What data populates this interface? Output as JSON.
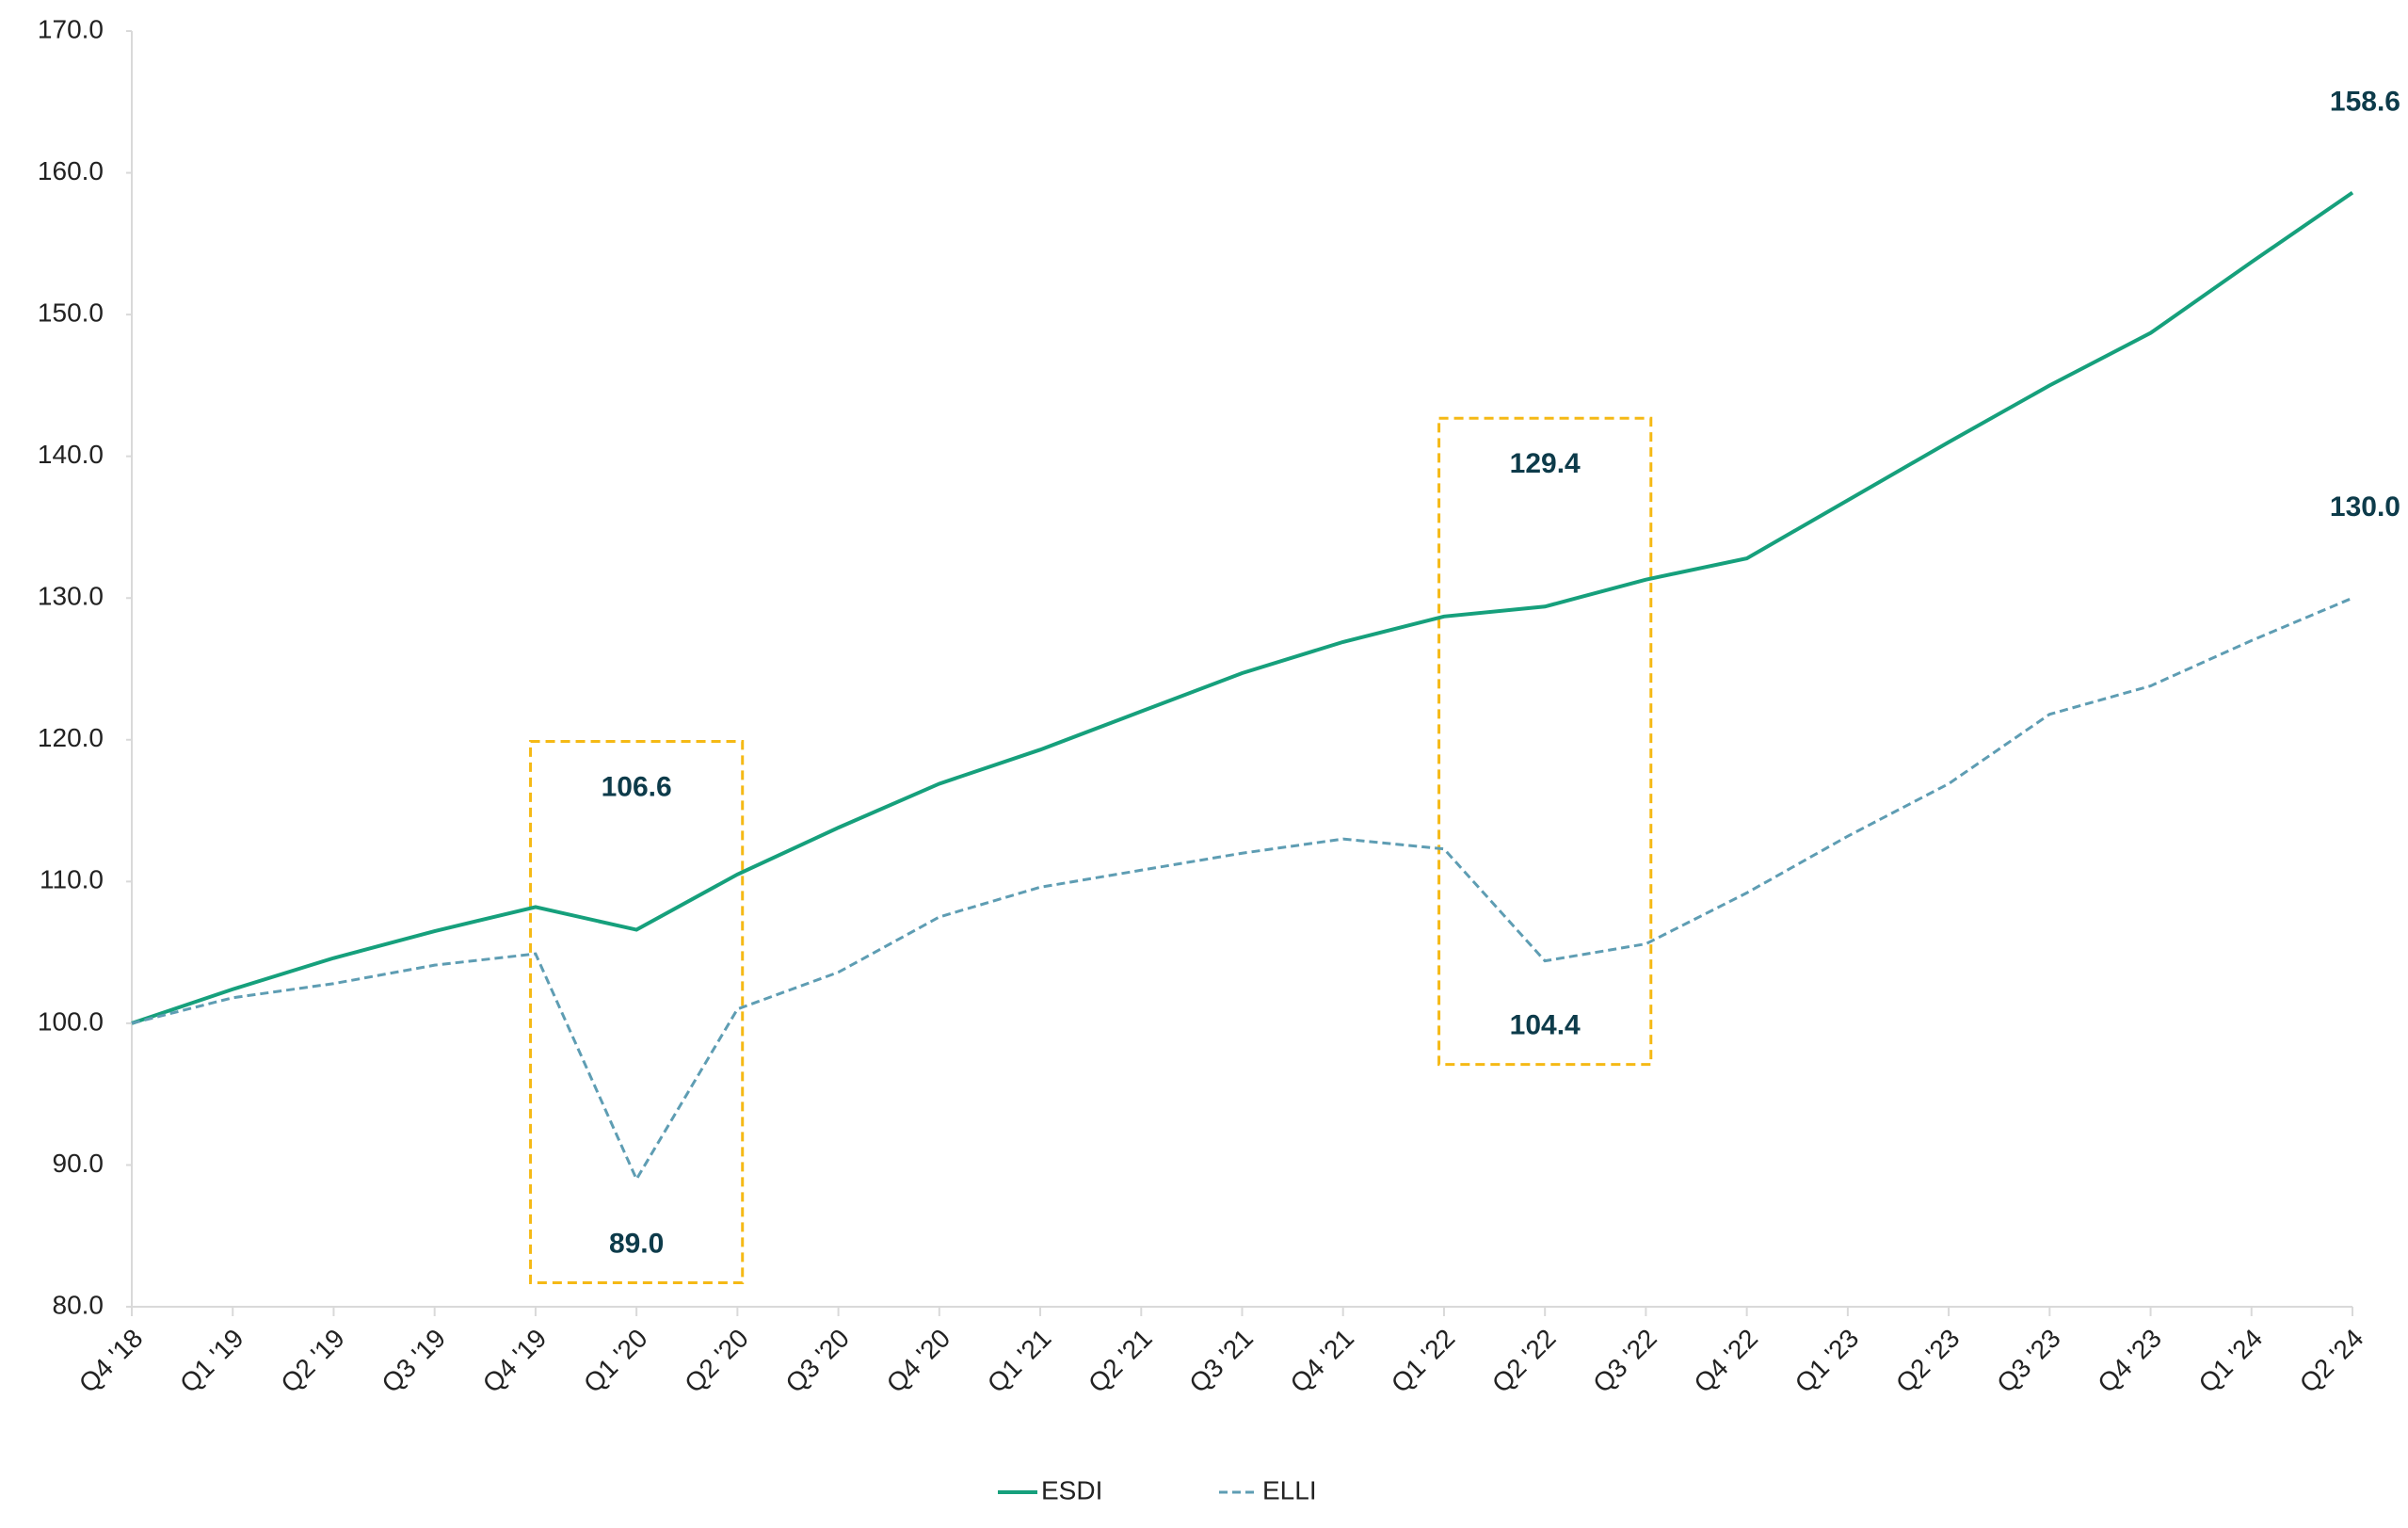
{
  "chart_data": {
    "type": "line",
    "categories": [
      "Q4 '18",
      "Q1 '19",
      "Q2 '19",
      "Q3 '19",
      "Q4 '19",
      "Q1 '20",
      "Q2 '20",
      "Q3 '20",
      "Q4 '20",
      "Q1 '21",
      "Q2 '21",
      "Q3 '21",
      "Q4 '21",
      "Q1 '22",
      "Q2 '22",
      "Q3 '22",
      "Q4 '22",
      "Q1 '23",
      "Q2 '23",
      "Q3 '23",
      "Q4 '23",
      "Q1 '24",
      "Q2 '24"
    ],
    "series": [
      {
        "name": "ESDI",
        "color": "#16a07c",
        "dashed": false,
        "values": [
          100.0,
          102.4,
          104.6,
          106.5,
          108.2,
          106.6,
          110.5,
          113.8,
          116.9,
          119.3,
          122.0,
          124.7,
          126.9,
          128.7,
          129.4,
          131.3,
          132.8,
          136.9,
          141.0,
          145.0,
          148.7,
          153.7,
          158.6
        ],
        "value_labels": [
          null,
          null,
          null,
          null,
          null,
          "106.6",
          null,
          null,
          null,
          null,
          null,
          null,
          null,
          null,
          "129.4",
          null,
          null,
          null,
          null,
          null,
          null,
          null,
          "158.6"
        ]
      },
      {
        "name": "ELLI",
        "color": "#5e9db3",
        "dashed": true,
        "values": [
          100.0,
          101.8,
          102.8,
          104.1,
          104.9,
          89.0,
          101.0,
          103.6,
          107.5,
          109.6,
          110.8,
          112.0,
          113.0,
          112.3,
          104.4,
          105.6,
          109.2,
          113.2,
          116.9,
          121.8,
          123.8,
          127.0,
          130.0
        ],
        "value_labels": [
          null,
          null,
          null,
          null,
          null,
          "89.0",
          null,
          null,
          null,
          null,
          null,
          null,
          null,
          null,
          "104.4",
          null,
          null,
          null,
          null,
          null,
          null,
          null,
          "130.0"
        ]
      }
    ],
    "ylim": [
      80,
      170
    ],
    "yticks": [
      {
        "value": 80,
        "label": "80.0"
      },
      {
        "value": 90,
        "label": "90.0"
      },
      {
        "value": 100,
        "label": "100.0"
      },
      {
        "value": 110,
        "label": "110.0"
      },
      {
        "value": 120,
        "label": "120.0"
      },
      {
        "value": 130,
        "label": "130.0"
      },
      {
        "value": 140,
        "label": "140.0"
      },
      {
        "value": 150,
        "label": "150.0"
      },
      {
        "value": 160,
        "label": "160.0"
      },
      {
        "value": 170,
        "label": "170.0"
      }
    ],
    "grid": false,
    "legend": "bottom",
    "highlight_color": "#f5b915"
  }
}
